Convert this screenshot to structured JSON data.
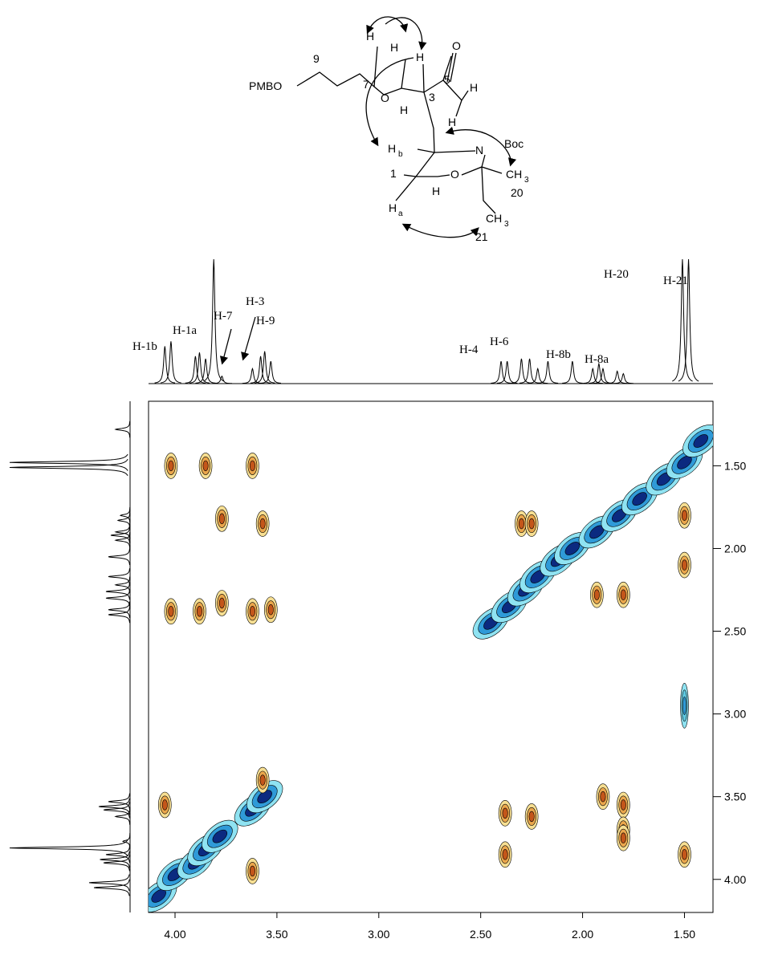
{
  "structure": {
    "atoms": [
      "H",
      "H",
      "H",
      "O",
      "9",
      "7",
      "5",
      "PMBO",
      "O",
      "H",
      "3",
      "H",
      "H",
      "H",
      "b",
      "N",
      "Boc",
      "1",
      "O",
      "H",
      "CH",
      "3",
      "20",
      "H",
      "a",
      "CH",
      "3",
      "21"
    ]
  },
  "chart_data": {
    "type": "contour",
    "xlim": [
      4.13,
      1.36
    ],
    "ylim": [
      1.11,
      4.2
    ],
    "xticks": [
      {
        "value": 4,
        "label": "4.00"
      },
      {
        "value": 3.5,
        "label": "3.50"
      },
      {
        "value": 3,
        "label": "3.00"
      },
      {
        "value": 2.5,
        "label": "2.50"
      },
      {
        "value": 2,
        "label": "2.00"
      },
      {
        "value": 1.5,
        "label": "1.50"
      }
    ],
    "yticks": [
      {
        "value": 1.5,
        "label": "1.50"
      },
      {
        "value": 2,
        "label": "2.00"
      },
      {
        "value": 2.5,
        "label": "2.50"
      },
      {
        "value": 3,
        "label": "3.00"
      },
      {
        "value": 3.5,
        "label": "3.50"
      },
      {
        "value": 4,
        "label": "4.00"
      }
    ],
    "peak_labels": [
      "H-1b",
      "H-1a",
      "H-7",
      "H-3",
      "H-9",
      "H-4",
      "H-6",
      "H-8b",
      "H-8a",
      "H-20",
      "H-21"
    ],
    "projection": {
      "x": [
        4.05,
        4.02,
        3.9,
        3.88,
        3.85,
        3.81,
        3.77,
        3.62,
        3.58,
        3.56,
        3.53,
        2.4,
        2.37,
        2.3,
        2.26,
        2.22,
        2.17,
        2.05,
        1.95,
        1.92,
        1.9,
        1.83,
        1.8,
        1.51,
        1.48,
        1.28
      ],
      "values": [
        30,
        34,
        22,
        25,
        20,
        100,
        6,
        12,
        22,
        26,
        18,
        18,
        18,
        20,
        20,
        12,
        18,
        18,
        12,
        16,
        12,
        10,
        8,
        100,
        100,
        12
      ]
    },
    "series": [
      {
        "name": "diagonal",
        "colors": [
          "#8fe3f2",
          "#2f9ad8",
          "#0b2a80"
        ],
        "x": [
          4.08,
          4.0,
          3.9,
          3.85,
          3.78,
          3.62,
          3.56,
          2.45,
          2.36,
          2.28,
          2.22,
          2.12,
          2.05,
          1.93,
          1.82,
          1.72,
          1.6,
          1.5,
          1.42
        ],
        "y": [
          4.1,
          3.97,
          3.9,
          3.82,
          3.74,
          3.58,
          3.5,
          2.45,
          2.35,
          2.25,
          2.17,
          2.07,
          2.0,
          1.9,
          1.8,
          1.7,
          1.58,
          1.48,
          1.35
        ]
      },
      {
        "name": "cross",
        "colors": [
          "#f7df92",
          "#eaa64c",
          "#c4561a"
        ],
        "x": [
          4.02,
          3.85,
          3.62,
          3.77,
          3.57,
          4.02,
          3.88,
          3.77,
          3.62,
          3.53,
          2.3,
          2.25,
          1.93,
          1.8,
          1.5,
          1.5,
          1.5,
          1.8,
          1.9,
          1.8,
          2.38,
          2.38,
          2.25,
          1.8,
          4.05,
          3.62,
          3.57
        ],
        "y": [
          1.5,
          1.5,
          1.5,
          1.82,
          1.85,
          2.38,
          2.38,
          2.33,
          2.38,
          2.37,
          1.85,
          1.85,
          2.28,
          2.28,
          1.8,
          2.1,
          3.85,
          3.55,
          3.5,
          3.7,
          3.6,
          3.85,
          3.62,
          3.75,
          3.55,
          3.95,
          3.4
        ]
      },
      {
        "name": "weak",
        "colors": [
          "#8fe3f2",
          "#5fc8e0",
          "#2f9ad8"
        ],
        "x": [
          1.5
        ],
        "y": [
          2.95
        ]
      }
    ]
  }
}
